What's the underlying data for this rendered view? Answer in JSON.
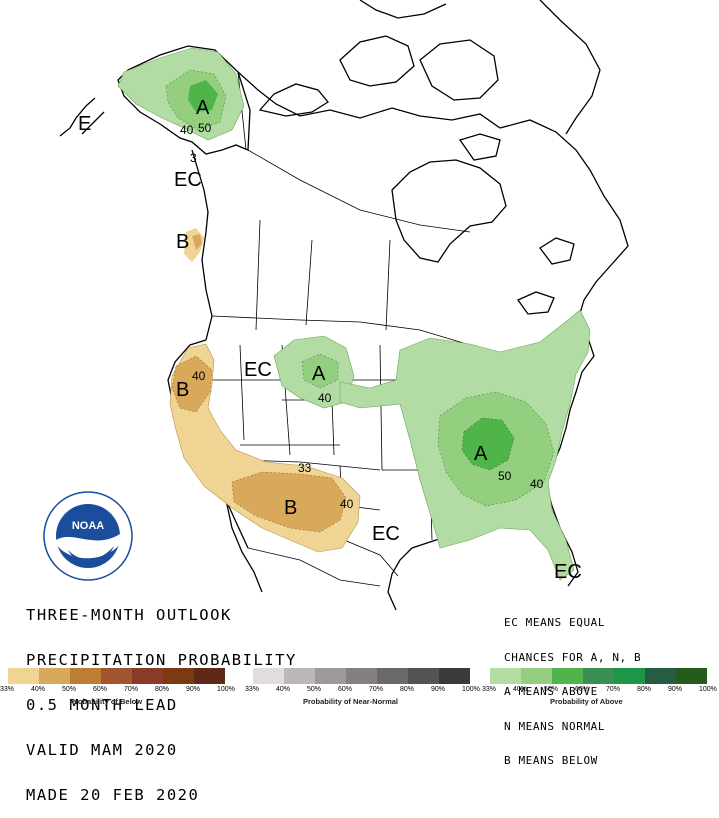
{
  "outlook": {
    "line1": "THREE-MONTH OUTLOOK",
    "line2": "PRECIPITATION PROBABILITY",
    "line3": "0.5 MONTH LEAD",
    "line4": "VALID MAM 2020",
    "line5": "MADE 20 FEB 2020"
  },
  "legend_text": {
    "line1": "EC MEANS EQUAL",
    "line2": "CHANCES FOR A, N, B",
    "line3": "A MEANS ABOVE",
    "line4": "N MEANS NORMAL",
    "line5": "B MEANS BELOW"
  },
  "map_labels": {
    "a_alaska": "A",
    "a_plains": "A",
    "a_ohio": "A",
    "b_pacnw": "B",
    "b_calif": "B",
    "b_southwest": "B",
    "ec_w_alaska": "E",
    "ec_se_alaska": "EC",
    "ec_west": "EC",
    "ec_texas": "EC",
    "ec_florida": "EC",
    "n40_ak": "40",
    "n50_ak": "50",
    "n33_ak": "3",
    "n40_ca": "40",
    "n40_plains": "40",
    "n33_sw": "33",
    "n40_sw": "40",
    "n50_ohio": "50",
    "n40_se": "40"
  },
  "legends": {
    "below": {
      "title": "Probability of Below",
      "ticks": [
        "33%",
        "40%",
        "50%",
        "60%",
        "70%",
        "80%",
        "90%",
        "100%"
      ],
      "colors": [
        "#f0d493",
        "#d8a85b",
        "#bd7d35",
        "#a2552c",
        "#8b3a2a",
        "#7b3a10",
        "#5e2a17"
      ]
    },
    "normal": {
      "title": "Probability of Near-Normal",
      "ticks": [
        "33%",
        "40%",
        "50%",
        "60%",
        "70%",
        "80%",
        "90%",
        "100%"
      ],
      "colors": [
        "#e0dcdf",
        "#bcb7ba",
        "#9d999c",
        "#83807f",
        "#6b696a",
        "#535354",
        "#3b3a3b"
      ]
    },
    "above": {
      "title": "Probability of Above",
      "ticks": [
        "33%",
        "40%",
        "50%",
        "60%",
        "70%",
        "80%",
        "90%",
        "100%"
      ],
      "colors": [
        "#b3dca4",
        "#94cf7f",
        "#4fb449",
        "#3b8f54",
        "#1e9547",
        "#265c41",
        "#275a1d"
      ]
    }
  },
  "colors": {
    "above_33": "#b3dca4",
    "above_40": "#94cf7f",
    "above_50": "#4fb449",
    "below_33": "#f0d493",
    "below_40": "#d8a85b",
    "noaa_blue": "#1a4d9c"
  }
}
